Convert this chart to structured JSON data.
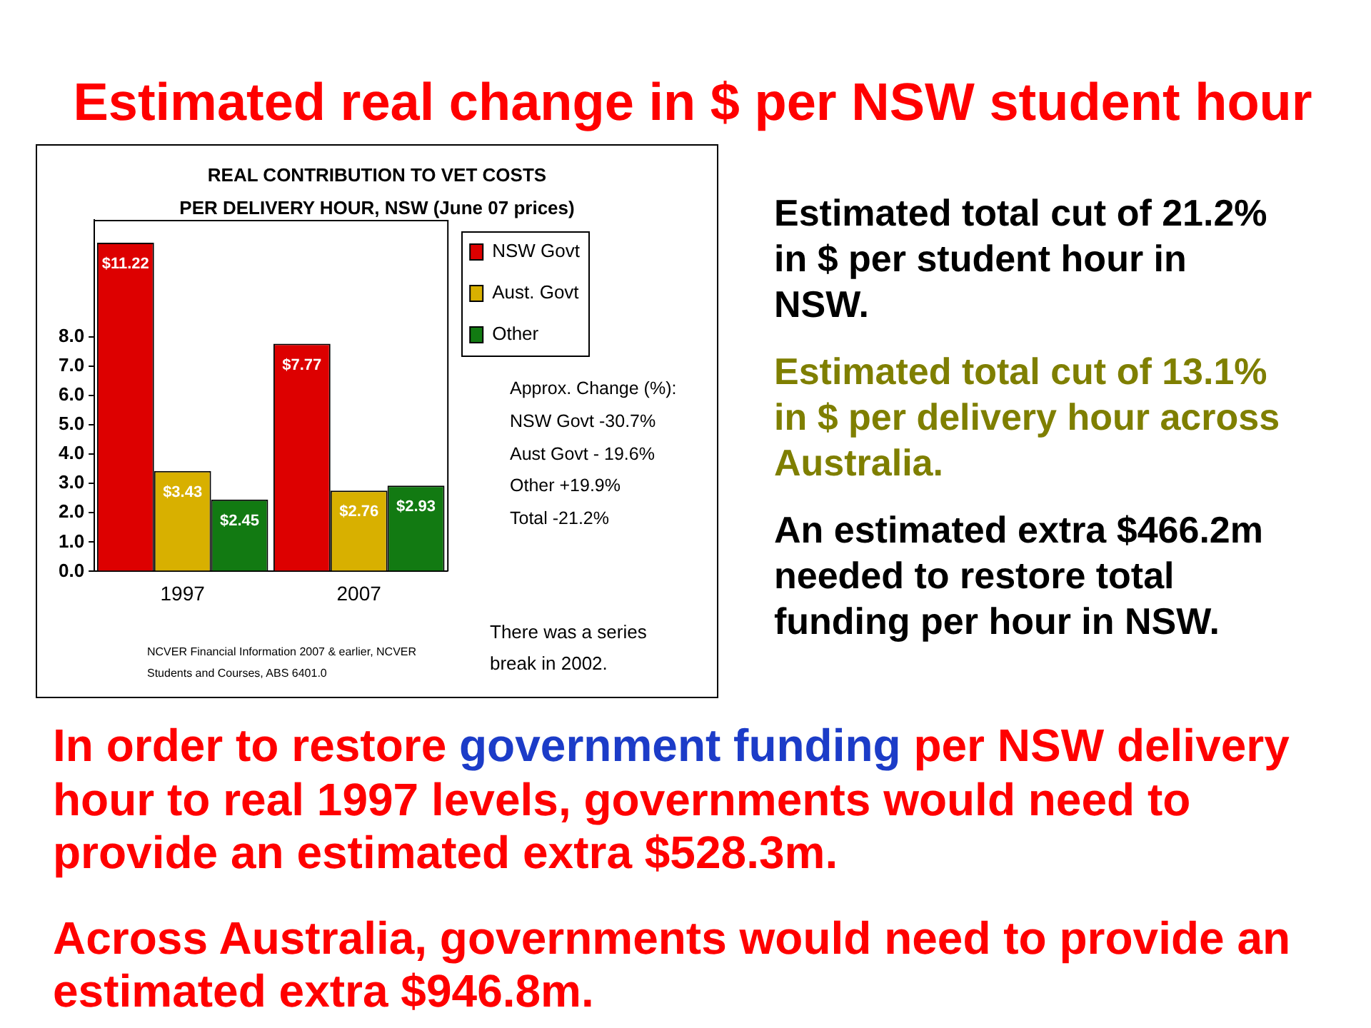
{
  "chart_data": {
    "type": "bar",
    "title": "Estimated real change in $ per NSW student hour",
    "subtitle": "REAL CONTRIBUTION TO VET COSTS\nPER DELIVERY HOUR, NSW (June 07 prices)",
    "categories": [
      "1997",
      "2007"
    ],
    "series": [
      {
        "name": "NSW Govt",
        "color": "#dd0000",
        "values": [
          11.22,
          7.77
        ],
        "value_labels": [
          "$11.22",
          "$7.77"
        ]
      },
      {
        "name": "Aust. Govt",
        "color": "#d8b000",
        "values": [
          3.43,
          2.76
        ],
        "value_labels": [
          "$3.43",
          "$2.76"
        ]
      },
      {
        "name": "Other",
        "color": "#127a12",
        "values": [
          2.45,
          2.93
        ],
        "value_labels": [
          "$2.45",
          "$2.93"
        ]
      }
    ],
    "ylim": [
      0,
      12
    ],
    "yticks": [
      {
        "value": 0,
        "label": "0.0"
      },
      {
        "value": 1,
        "label": "1.0"
      },
      {
        "value": 2,
        "label": "2.0"
      },
      {
        "value": 3,
        "label": "3.0"
      },
      {
        "value": 4,
        "label": "4.0"
      },
      {
        "value": 5,
        "label": "5.0"
      },
      {
        "value": 6,
        "label": "6.0"
      },
      {
        "value": 7,
        "label": "7.0"
      },
      {
        "value": 8,
        "label": "8.0"
      }
    ],
    "legend": "top right",
    "annotations": [
      "Approx. Change (%):",
      "NSW Govt -30.7%",
      "Aust Govt - 19.6%",
      "Other +19.9%",
      "Total -21.2%",
      "There was a series break in 2002.",
      "NCVER Financial Information 2007 & earlier, NCVER Students and Courses, ABS 6401.0",
      "Estimated total cut of 21.2% in $ per student hour in NSW.",
      "Estimated total cut of 13.1% in $ per delivery hour across Australia.",
      "An estimated extra $466.2m needed to restore total funding per hour in NSW.",
      "In order to restore",
      "government funding",
      "per NSW delivery hour to real 1997 levels, governments would need to provide an estimated extra $528.3m.",
      "Across Australia, governments would need to provide an estimated extra $946.8m."
    ]
  }
}
